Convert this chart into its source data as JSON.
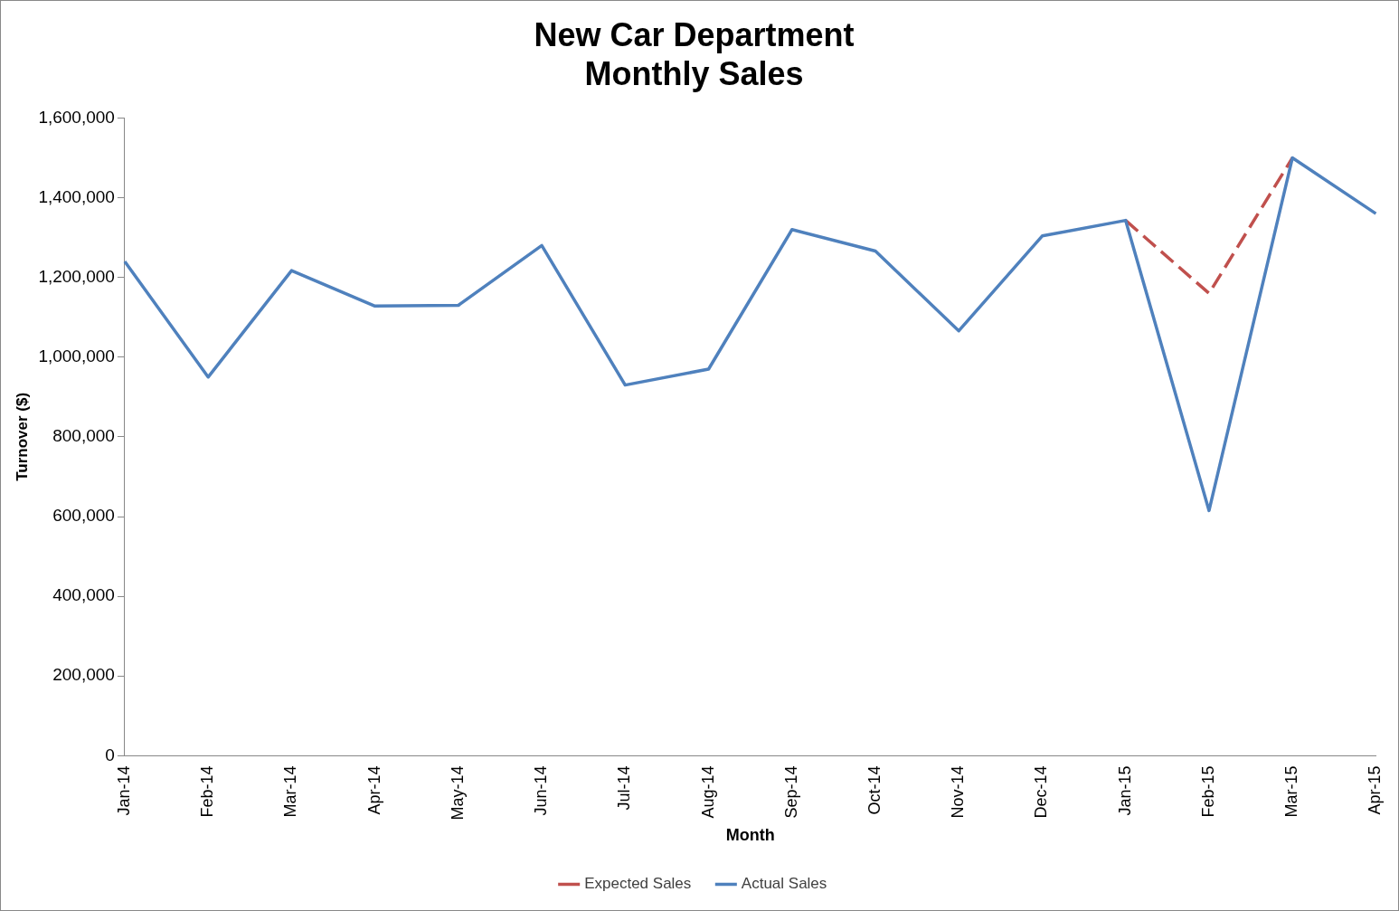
{
  "chart_data": {
    "type": "line",
    "title": "New Car Department\nMonthly Sales",
    "xlabel": "Month",
    "ylabel": "Turnover ($)",
    "categories": [
      "Jan-14",
      "Feb-14",
      "Mar-14",
      "Apr-14",
      "May-14",
      "Jun-14",
      "Jul-14",
      "Aug-14",
      "Sep-14",
      "Oct-14",
      "Nov-14",
      "Dec-14",
      "Jan-15",
      "Feb-15",
      "Mar-15",
      "Apr-15"
    ],
    "series": [
      {
        "name": "Expected Sales",
        "color": "#c0504d",
        "line_style": "dashed",
        "values": [
          null,
          null,
          null,
          null,
          null,
          null,
          null,
          null,
          null,
          null,
          null,
          null,
          1343000,
          1160000,
          1500000,
          null
        ]
      },
      {
        "name": "Actual Sales",
        "color": "#4f81bd",
        "line_style": "solid",
        "values": [
          1240000,
          950000,
          1217000,
          1128000,
          1130000,
          1280000,
          930000,
          970000,
          1320000,
          1266000,
          1066000,
          1304000,
          1343000,
          615000,
          1500000,
          1360000
        ]
      }
    ],
    "ylim": [
      0,
      1600000
    ],
    "yticks": [
      0,
      {
        "value": 200000,
        "label": "200,000"
      },
      {
        "value": 400000,
        "label": "400,000"
      },
      {
        "value": 600000,
        "label": "600,000"
      },
      {
        "value": 800000,
        "label": "800,000"
      },
      {
        "value": 1000000,
        "label": "1,000,000"
      },
      {
        "value": 1200000,
        "label": "1,200,000"
      },
      {
        "value": 1400000,
        "label": "1,400,000"
      },
      {
        "value": 1600000,
        "label": "1,600,000"
      }
    ],
    "legend": "bottom",
    "marker": "none"
  }
}
